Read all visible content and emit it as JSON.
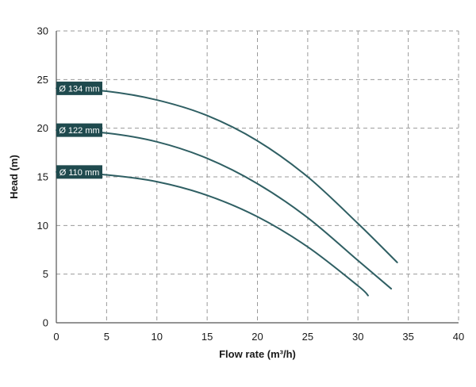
{
  "chart_data": {
    "type": "line",
    "xlabel": "Flow rate (m³/h)",
    "ylabel": "Head (m)",
    "xlim": [
      0,
      40
    ],
    "ylim": [
      0,
      30
    ],
    "xticks": [
      0,
      5,
      10,
      15,
      20,
      25,
      30,
      35,
      40
    ],
    "yticks": [
      0,
      5,
      10,
      15,
      20,
      25,
      30
    ],
    "grid": true,
    "grid_style": "dashed",
    "series": [
      {
        "name": "Ø 134 mm",
        "color": "#2f5f63",
        "label_color": "#1f4a4e",
        "x": [
          0,
          5,
          10,
          15,
          20,
          25,
          30,
          33.9
        ],
        "y": [
          24.1,
          23.8,
          22.9,
          21.3,
          18.7,
          15.0,
          10.2,
          6.2
        ]
      },
      {
        "name": "Ø 122 mm",
        "color": "#2f5f63",
        "label_color": "#1f4a4e",
        "x": [
          0,
          5,
          10,
          15,
          20,
          25,
          30,
          33.3
        ],
        "y": [
          19.8,
          19.5,
          18.6,
          16.9,
          14.3,
          10.8,
          6.4,
          3.5
        ]
      },
      {
        "name": "Ø 110 mm",
        "color": "#2f5f63",
        "label_color": "#1f4a4e",
        "x": [
          0,
          5,
          10,
          15,
          20,
          25,
          30,
          31.0
        ],
        "y": [
          15.5,
          15.2,
          14.5,
          13.1,
          10.9,
          7.8,
          3.8,
          2.8
        ]
      }
    ]
  }
}
